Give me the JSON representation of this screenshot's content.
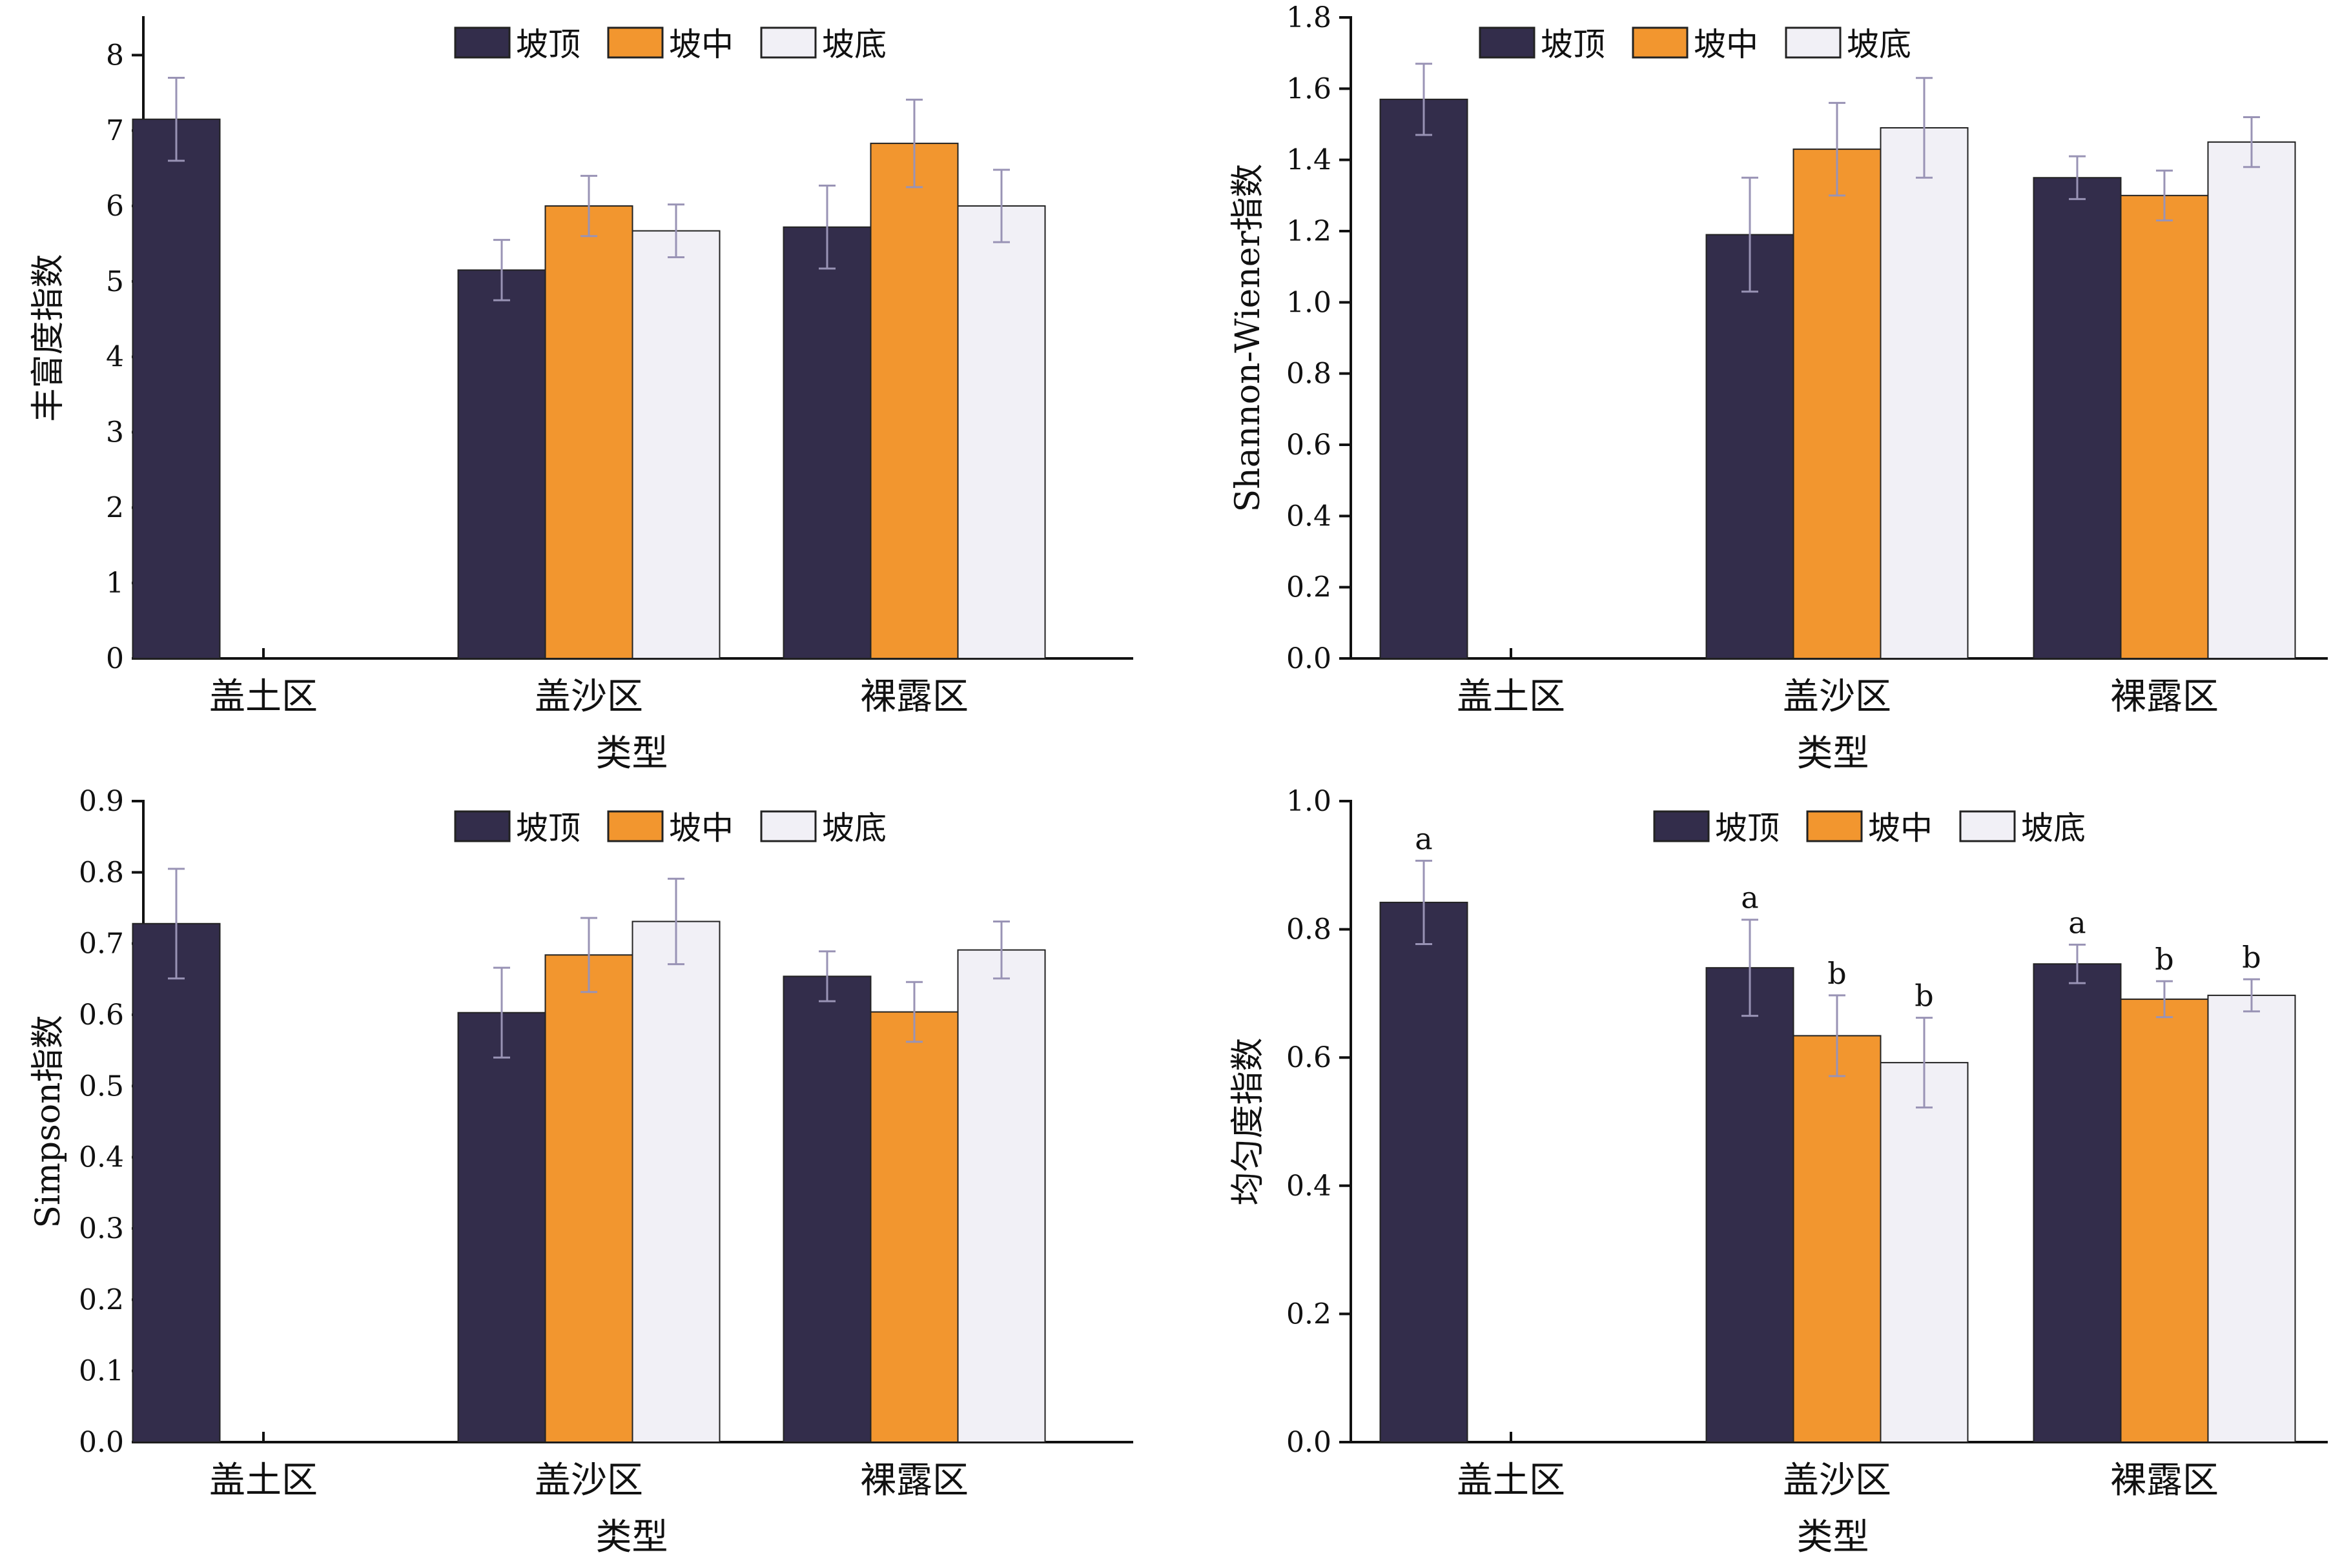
{
  "colors": {
    "坡顶": "#332d4b",
    "坡中": "#f2962f",
    "坡底": "#f1f0f6",
    "axis": "#111111",
    "error_bar": "#9993b5"
  },
  "chart_data": [
    {
      "type": "bar",
      "title": "",
      "xlabel": "类型",
      "ylabel": "丰富度指数",
      "categories": [
        "盖土区",
        "盖沙区",
        "裸露区"
      ],
      "ylim": [
        0,
        8.5
      ],
      "yticks": [
        "0",
        "1",
        "2",
        "3",
        "4",
        "5",
        "6",
        "7",
        "8"
      ],
      "legend": {
        "placement": "top-center",
        "entries": [
          "坡顶",
          "坡中",
          "坡底"
        ]
      },
      "series": [
        {
          "name": "坡顶",
          "values": [
            7.15,
            5.15,
            5.72
          ],
          "errors": [
            0.55,
            0.4,
            0.55
          ]
        },
        {
          "name": "坡中",
          "values": [
            null,
            6.0,
            6.83
          ],
          "errors": [
            null,
            0.4,
            0.58
          ]
        },
        {
          "name": "坡底",
          "values": [
            null,
            5.67,
            6.0
          ],
          "errors": [
            null,
            0.35,
            0.48
          ]
        }
      ]
    },
    {
      "type": "bar",
      "title": "",
      "xlabel": "类型",
      "ylabel": "Shannon-Wiener指数",
      "categories": [
        "盖土区",
        "盖沙区",
        "裸露区"
      ],
      "ylim": [
        0,
        1.8
      ],
      "yticks": [
        "0.0",
        "0.2",
        "0.4",
        "0.6",
        "0.8",
        "1.0",
        "1.2",
        "1.4",
        "1.6",
        "1.8"
      ],
      "legend": {
        "placement": "top-center",
        "entries": [
          "坡顶",
          "坡中",
          "坡底"
        ]
      },
      "series": [
        {
          "name": "坡顶",
          "values": [
            1.57,
            1.19,
            1.35
          ],
          "errors": [
            0.1,
            0.16,
            0.06
          ]
        },
        {
          "name": "坡中",
          "values": [
            null,
            1.43,
            1.3
          ],
          "errors": [
            null,
            0.13,
            0.07
          ]
        },
        {
          "name": "坡底",
          "values": [
            null,
            1.49,
            1.45
          ],
          "errors": [
            null,
            0.14,
            0.07
          ]
        }
      ]
    },
    {
      "type": "bar",
      "title": "",
      "xlabel": "类型",
      "ylabel": "Simpson指数",
      "categories": [
        "盖土区",
        "盖沙区",
        "裸露区"
      ],
      "ylim": [
        0,
        0.9
      ],
      "yticks": [
        "0.0",
        "0.1",
        "0.2",
        "0.3",
        "0.4",
        "0.5",
        "0.6",
        "0.7",
        "0.8",
        "0.9"
      ],
      "legend": {
        "placement": "top-center",
        "entries": [
          "坡顶",
          "坡中",
          "坡底"
        ]
      },
      "series": [
        {
          "name": "坡顶",
          "values": [
            0.728,
            0.603,
            0.654
          ],
          "errors": [
            0.077,
            0.063,
            0.035
          ]
        },
        {
          "name": "坡中",
          "values": [
            null,
            0.684,
            0.604
          ],
          "errors": [
            null,
            0.052,
            0.042
          ]
        },
        {
          "name": "坡底",
          "values": [
            null,
            0.731,
            0.691
          ],
          "errors": [
            null,
            0.06,
            0.04
          ]
        }
      ]
    },
    {
      "type": "bar",
      "title": "",
      "xlabel": "类型",
      "ylabel": "均匀度指数",
      "categories": [
        "盖土区",
        "盖沙区",
        "裸露区"
      ],
      "ylim": [
        0,
        1.0
      ],
      "yticks": [
        "0.0",
        "0.2",
        "0.4",
        "0.6",
        "0.8",
        "1.0"
      ],
      "legend": {
        "placement": "top-center",
        "entries": [
          "坡顶",
          "坡中",
          "坡底"
        ]
      },
      "series": [
        {
          "name": "坡顶",
          "values": [
            0.842,
            0.74,
            0.746
          ],
          "errors": [
            0.065,
            0.075,
            0.03
          ],
          "annotations": [
            "a",
            "a",
            "a"
          ]
        },
        {
          "name": "坡中",
          "values": [
            null,
            0.634,
            0.691
          ],
          "errors": [
            null,
            0.063,
            0.028
          ],
          "annotations": [
            null,
            "b",
            "b"
          ]
        },
        {
          "name": "坡底",
          "values": [
            null,
            0.592,
            0.697
          ],
          "errors": [
            null,
            0.07,
            0.025
          ],
          "annotations": [
            null,
            "b",
            "b"
          ]
        }
      ]
    }
  ]
}
